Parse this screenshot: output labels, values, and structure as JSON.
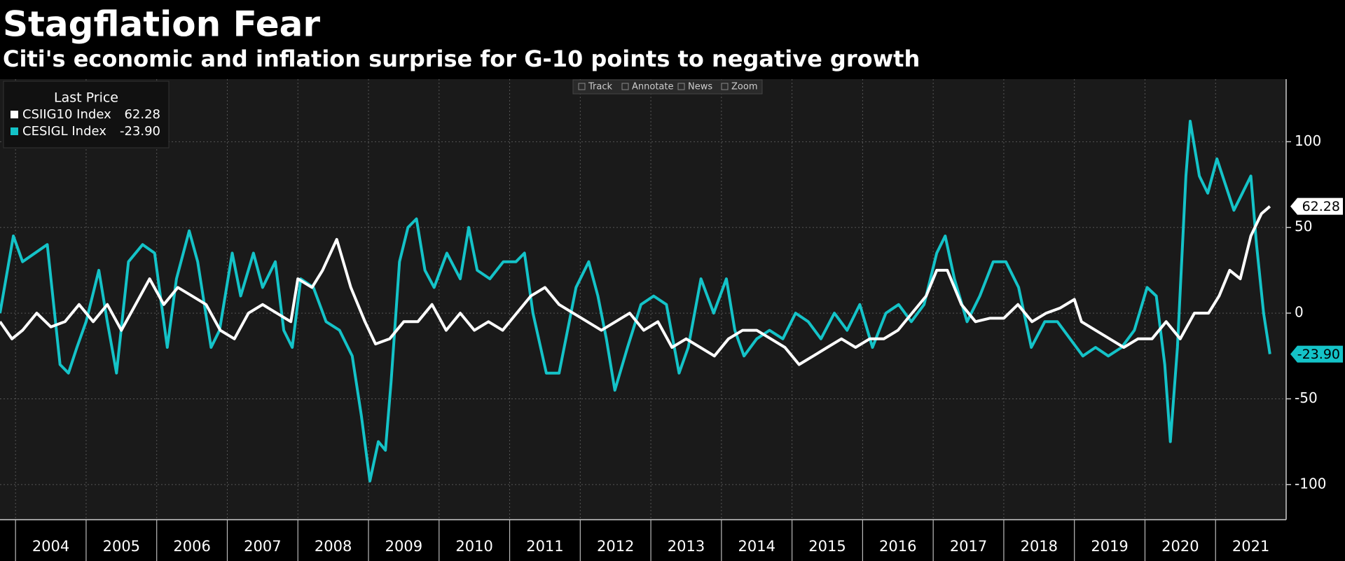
{
  "chart_data": {
    "type": "line",
    "title": "Stagflation Fear",
    "subtitle": "Citi's economic and inflation surprise for G-10 points to negative growth",
    "legend_title": "Last Price",
    "toolbar": [
      "Track",
      "Annotate",
      "News",
      "Zoom"
    ],
    "xlim": [
      2003.78,
      2022.0
    ],
    "xticks": [
      2004,
      2005,
      2006,
      2007,
      2008,
      2009,
      2010,
      2011,
      2012,
      2013,
      2014,
      2015,
      2016,
      2017,
      2018,
      2019,
      2020,
      2021
    ],
    "ylim": [
      -120.5,
      136.5
    ],
    "yticks": [
      -100,
      -50,
      0,
      50,
      100
    ],
    "grid": true,
    "series": [
      {
        "name": "CESIGL Index",
        "color": "#14c3c8",
        "last_price": {
          "value": -23.9,
          "label": "-23.90"
        },
        "x": [
          2003.78,
          2003.97,
          2004.1,
          2004.45,
          2004.63,
          2004.75,
          2004.87,
          2005.0,
          2005.18,
          2005.3,
          2005.43,
          2005.6,
          2005.8,
          2005.97,
          2006.15,
          2006.28,
          2006.46,
          2006.58,
          2006.77,
          2006.89,
          2007.07,
          2007.19,
          2007.37,
          2007.5,
          2007.68,
          2007.8,
          2007.92,
          2008.04,
          2008.22,
          2008.4,
          2008.59,
          2008.77,
          2008.9,
          2009.02,
          2009.14,
          2009.24,
          2009.32,
          2009.44,
          2009.56,
          2009.68,
          2009.8,
          2009.93,
          2010.11,
          2010.3,
          2010.42,
          2010.54,
          2010.72,
          2010.91,
          2011.09,
          2011.21,
          2011.33,
          2011.52,
          2011.7,
          2011.82,
          2011.94,
          2012.12,
          2012.25,
          2012.37,
          2012.49,
          2012.67,
          2012.86,
          2013.04,
          2013.22,
          2013.4,
          2013.53,
          2013.71,
          2013.89,
          2014.07,
          2014.19,
          2014.32,
          2014.5,
          2014.68,
          2014.87,
          2015.05,
          2015.23,
          2015.41,
          2015.6,
          2015.78,
          2015.96,
          2016.14,
          2016.33,
          2016.51,
          2016.69,
          2016.87,
          2017.05,
          2017.17,
          2017.3,
          2017.48,
          2017.66,
          2017.85,
          2018.03,
          2018.21,
          2018.39,
          2018.58,
          2018.76,
          2018.94,
          2019.12,
          2019.3,
          2019.48,
          2019.67,
          2019.85,
          2020.03,
          2020.16,
          2020.28,
          2020.36,
          2020.46,
          2020.58,
          2020.64,
          2020.77,
          2020.89,
          2021.02,
          2021.14,
          2021.26,
          2021.38,
          2021.5,
          2021.58,
          2021.68,
          2021.77
        ],
        "values": [
          0,
          45,
          30,
          40,
          -30,
          -35,
          -20,
          -5,
          25,
          -5,
          -35,
          30,
          40,
          35,
          -20,
          20,
          48,
          30,
          -20,
          -10,
          35,
          10,
          35,
          15,
          30,
          -10,
          -20,
          20,
          15,
          -5,
          -10,
          -25,
          -60,
          -98,
          -75,
          -80,
          -40,
          30,
          50,
          55,
          25,
          15,
          35,
          20,
          50,
          25,
          20,
          30,
          30,
          35,
          0,
          -35,
          -35,
          -10,
          15,
          30,
          10,
          -15,
          -45,
          -20,
          5,
          10,
          5,
          -35,
          -20,
          20,
          0,
          20,
          -10,
          -25,
          -15,
          -10,
          -15,
          0,
          -5,
          -15,
          0,
          -10,
          5,
          -20,
          0,
          5,
          -5,
          5,
          35,
          45,
          20,
          -5,
          10,
          30,
          30,
          15,
          -20,
          -5,
          -5,
          -15,
          -25,
          -20,
          -25,
          -20,
          -10,
          15,
          10,
          -30,
          -75,
          -20,
          80,
          112,
          80,
          70,
          90,
          75,
          60,
          70,
          80,
          40,
          0,
          -23.9
        ]
      },
      {
        "name": "CSIIG10 Index",
        "color": "#ffffff",
        "last_price": {
          "value": 62.28,
          "label": "62.28"
        },
        "x": [
          2003.78,
          2003.95,
          2004.1,
          2004.3,
          2004.5,
          2004.7,
          2004.9,
          2005.1,
          2005.3,
          2005.5,
          2005.7,
          2005.9,
          2006.1,
          2006.3,
          2006.5,
          2006.7,
          2006.9,
          2007.1,
          2007.3,
          2007.5,
          2007.7,
          2007.9,
          2008.0,
          2008.2,
          2008.35,
          2008.55,
          2008.75,
          2008.95,
          2009.1,
          2009.3,
          2009.5,
          2009.7,
          2009.9,
          2010.1,
          2010.3,
          2010.5,
          2010.7,
          2010.9,
          2011.1,
          2011.3,
          2011.5,
          2011.7,
          2011.9,
          2012.1,
          2012.3,
          2012.5,
          2012.7,
          2012.9,
          2013.1,
          2013.3,
          2013.5,
          2013.7,
          2013.9,
          2014.1,
          2014.3,
          2014.5,
          2014.7,
          2014.9,
          2015.1,
          2015.3,
          2015.5,
          2015.7,
          2015.9,
          2016.1,
          2016.3,
          2016.5,
          2016.7,
          2016.9,
          2017.05,
          2017.2,
          2017.4,
          2017.6,
          2017.8,
          2018.0,
          2018.2,
          2018.4,
          2018.6,
          2018.8,
          2019.0,
          2019.1,
          2019.3,
          2019.5,
          2019.7,
          2019.9,
          2020.1,
          2020.3,
          2020.5,
          2020.7,
          2020.9,
          2021.05,
          2021.2,
          2021.35,
          2021.5,
          2021.65,
          2021.77
        ],
        "values": [
          -5,
          -15,
          -10,
          0,
          -8,
          -5,
          5,
          -5,
          5,
          -10,
          5,
          20,
          5,
          15,
          10,
          5,
          -10,
          -15,
          0,
          5,
          0,
          -5,
          20,
          15,
          25,
          43,
          15,
          -5,
          -18,
          -15,
          -5,
          -5,
          5,
          -10,
          0,
          -10,
          -5,
          -10,
          0,
          10,
          15,
          5,
          0,
          -5,
          -10,
          -5,
          0,
          -10,
          -5,
          -20,
          -15,
          -20,
          -25,
          -15,
          -10,
          -10,
          -15,
          -20,
          -30,
          -25,
          -20,
          -15,
          -20,
          -15,
          -15,
          -10,
          0,
          10,
          25,
          25,
          5,
          -5,
          -3,
          -3,
          5,
          -5,
          0,
          3,
          8,
          -5,
          -10,
          -15,
          -20,
          -15,
          -15,
          -5,
          -15,
          0,
          0,
          10,
          25,
          20,
          45,
          58,
          62.28
        ]
      }
    ]
  }
}
